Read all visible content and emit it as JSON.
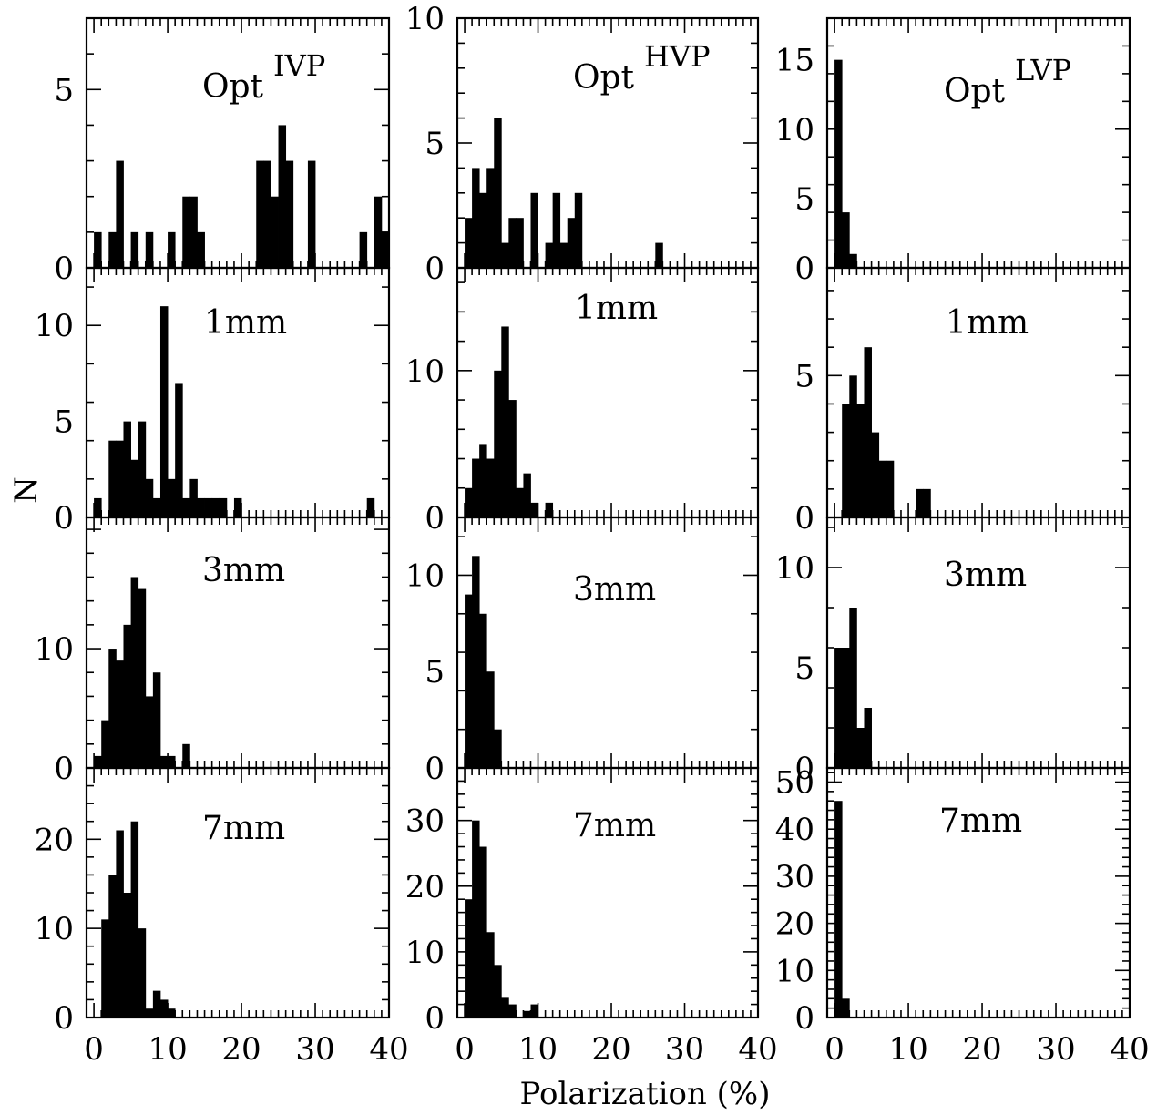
{
  "figure": {
    "xlabel": "Polarization (%)",
    "ylabel": "N"
  },
  "chart_data": [
    {
      "type": "bar",
      "row": 0,
      "col": 0,
      "title": "Opt",
      "title_sup": "IVP",
      "xlim": [
        -1,
        40
      ],
      "ylim": [
        0,
        7
      ],
      "yticks": [
        0,
        5
      ],
      "xticks": [
        0,
        10,
        20,
        30,
        40
      ],
      "bin_width": 1,
      "bins": [
        0,
        1,
        2,
        3,
        4,
        5,
        6,
        7,
        8,
        9,
        10,
        11,
        12,
        13,
        14,
        15,
        16,
        17,
        18,
        19,
        20,
        21,
        22,
        23,
        24,
        25,
        26,
        27,
        28,
        29,
        30,
        31,
        32,
        33,
        34,
        35,
        36,
        37,
        38,
        39
      ],
      "values": [
        1,
        0,
        1,
        3,
        0,
        1,
        0,
        1,
        0,
        0,
        1,
        0,
        2,
        2,
        1,
        0,
        0,
        0,
        0,
        0,
        0,
        0,
        3,
        3,
        2,
        4,
        3,
        0,
        0,
        3,
        0,
        0,
        0,
        0,
        0,
        0,
        1,
        0,
        2,
        1
      ]
    },
    {
      "type": "bar",
      "row": 0,
      "col": 1,
      "title": "Opt",
      "title_sup": "HVP",
      "xlim": [
        -1,
        40
      ],
      "ylim": [
        0,
        10
      ],
      "yticks": [
        0,
        5,
        10
      ],
      "xticks": [
        0,
        10,
        20,
        30,
        40
      ],
      "bin_width": 1,
      "bins": [
        0,
        1,
        2,
        3,
        4,
        5,
        6,
        7,
        8,
        9,
        10,
        11,
        12,
        13,
        14,
        15,
        16,
        17,
        18,
        19,
        20,
        21,
        22,
        23,
        24,
        25,
        26
      ],
      "values": [
        2,
        4,
        3,
        4,
        6,
        1,
        2,
        2,
        0,
        3,
        0,
        1,
        3,
        1,
        2,
        3,
        0,
        0,
        0,
        0,
        0,
        0,
        0,
        0,
        0,
        0,
        1
      ]
    },
    {
      "type": "bar",
      "row": 0,
      "col": 2,
      "title": "Opt",
      "title_sup": "LVP",
      "xlim": [
        -1,
        40
      ],
      "ylim": [
        0,
        18
      ],
      "yticks": [
        0,
        5,
        10,
        15
      ],
      "xticks": [
        0,
        10,
        20,
        30,
        40
      ],
      "bin_width": 1,
      "bins": [
        0,
        1,
        2
      ],
      "values": [
        15,
        4,
        1
      ]
    },
    {
      "type": "bar",
      "row": 1,
      "col": 0,
      "title": "1mm",
      "xlim": [
        -1,
        40
      ],
      "ylim": [
        0,
        13
      ],
      "yticks": [
        0,
        5,
        10
      ],
      "xticks": [
        0,
        10,
        20,
        30,
        40
      ],
      "bin_width": 1,
      "bins": [
        0,
        1,
        2,
        3,
        4,
        5,
        6,
        7,
        8,
        9,
        10,
        11,
        12,
        13,
        14,
        15,
        16,
        17,
        18,
        19,
        20,
        21,
        22,
        23,
        24,
        25,
        26,
        27,
        28,
        29,
        30,
        31,
        32,
        33,
        34,
        35,
        36,
        37
      ],
      "values": [
        1,
        0,
        4,
        4,
        5,
        3,
        5,
        2,
        1,
        11,
        2,
        7,
        1,
        2,
        1,
        1,
        1,
        1,
        0,
        1,
        0,
        0,
        0,
        0,
        0,
        0,
        0,
        0,
        0,
        0,
        0,
        0,
        0,
        0,
        0,
        0,
        0,
        1
      ]
    },
    {
      "type": "bar",
      "row": 1,
      "col": 1,
      "title": "1mm",
      "xlim": [
        -1,
        40
      ],
      "ylim": [
        0,
        17
      ],
      "yticks": [
        0,
        10
      ],
      "xticks": [
        0,
        10,
        20,
        30,
        40
      ],
      "bin_width": 1,
      "bins": [
        0,
        1,
        2,
        3,
        4,
        5,
        6,
        7,
        8,
        9,
        10,
        11
      ],
      "values": [
        2,
        4,
        5,
        4,
        10,
        13,
        8,
        2,
        3,
        1,
        0,
        1
      ]
    },
    {
      "type": "bar",
      "row": 1,
      "col": 2,
      "title": "1mm",
      "xlim": [
        -1,
        40
      ],
      "ylim": [
        0,
        8.8
      ],
      "yticks": [
        0,
        5
      ],
      "xticks": [
        0,
        10,
        20,
        30,
        40
      ],
      "bin_width": 1,
      "bins": [
        0,
        1,
        2,
        3,
        4,
        5,
        6,
        7,
        8,
        9,
        10,
        11,
        12
      ],
      "values": [
        0,
        4,
        5,
        4,
        6,
        3,
        2,
        2,
        0,
        0,
        0,
        1,
        1
      ]
    },
    {
      "type": "bar",
      "row": 2,
      "col": 0,
      "title": "3mm",
      "xlim": [
        -1,
        40
      ],
      "ylim": [
        0,
        21
      ],
      "yticks": [
        0,
        10
      ],
      "xticks": [
        0,
        10,
        20,
        30,
        40
      ],
      "bin_width": 1,
      "bins": [
        0,
        1,
        2,
        3,
        4,
        5,
        6,
        7,
        8,
        9,
        10,
        11,
        12
      ],
      "values": [
        1,
        4,
        10,
        9,
        12,
        16,
        15,
        6,
        8,
        1,
        1,
        0,
        2
      ]
    },
    {
      "type": "bar",
      "row": 2,
      "col": 1,
      "title": "3mm",
      "xlim": [
        -1,
        40
      ],
      "ylim": [
        0,
        13
      ],
      "yticks": [
        0,
        5,
        10
      ],
      "xticks": [
        0,
        10,
        20,
        30,
        40
      ],
      "bin_width": 1,
      "bins": [
        0,
        1,
        2,
        3,
        4
      ],
      "values": [
        9,
        11,
        8,
        5,
        2
      ]
    },
    {
      "type": "bar",
      "row": 2,
      "col": 2,
      "title": "3mm",
      "xlim": [
        -1,
        40
      ],
      "ylim": [
        0,
        12.5
      ],
      "yticks": [
        0,
        5,
        10
      ],
      "xticks": [
        0,
        10,
        20,
        30,
        40
      ],
      "bin_width": 1,
      "bins": [
        0,
        1,
        2,
        3,
        4
      ],
      "values": [
        6,
        6,
        8,
        2,
        3
      ]
    },
    {
      "type": "bar",
      "row": 3,
      "col": 0,
      "title": "7mm",
      "xlim": [
        -1,
        40
      ],
      "ylim": [
        0,
        28
      ],
      "yticks": [
        0,
        10,
        20
      ],
      "xticks": [
        0,
        10,
        20,
        30,
        40
      ],
      "bin_width": 1,
      "bins": [
        0,
        1,
        2,
        3,
        4,
        5,
        6,
        7,
        8,
        9,
        10
      ],
      "values": [
        0,
        11,
        16,
        21,
        14,
        22,
        10,
        1,
        3,
        2,
        1
      ]
    },
    {
      "type": "bar",
      "row": 3,
      "col": 1,
      "title": "7mm",
      "xlim": [
        -1,
        40
      ],
      "ylim": [
        0,
        38
      ],
      "yticks": [
        0,
        10,
        20,
        30
      ],
      "xticks": [
        0,
        10,
        20,
        30,
        40
      ],
      "bin_width": 1,
      "bins": [
        0,
        1,
        2,
        3,
        4,
        5,
        6,
        7,
        8,
        9
      ],
      "values": [
        18,
        30,
        26,
        13,
        8,
        3,
        2,
        0,
        1,
        2
      ]
    },
    {
      "type": "bar",
      "row": 3,
      "col": 2,
      "title": "7mm",
      "xlim": [
        -1,
        40
      ],
      "ylim": [
        0,
        53
      ],
      "yticks": [
        0,
        10,
        20,
        30,
        40,
        50
      ],
      "xticks": [
        0,
        10,
        20,
        30,
        40
      ],
      "bin_width": 1,
      "bins": [
        0,
        1
      ],
      "values": [
        46,
        4
      ]
    }
  ]
}
